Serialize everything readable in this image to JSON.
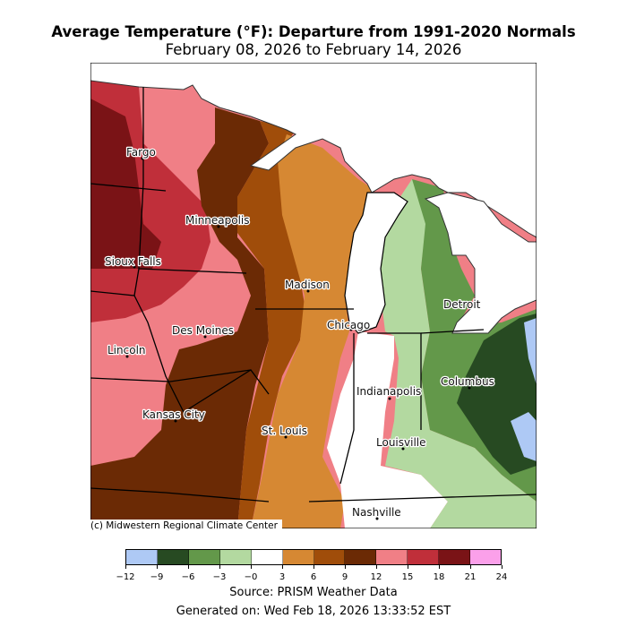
{
  "title": "Average Temperature (°F): Departure from 1991-2020 Normals",
  "subtitle": "February 08, 2026 to February 14, 2026",
  "cities": [
    {
      "name": "Fargo"
    },
    {
      "name": "Minneapolis"
    },
    {
      "name": "Sioux Falls"
    },
    {
      "name": "Madison"
    },
    {
      "name": "Detroit"
    },
    {
      "name": "Chicago"
    },
    {
      "name": "Des Moines"
    },
    {
      "name": "Lincoln"
    },
    {
      "name": "Indianapolis"
    },
    {
      "name": "Columbus"
    },
    {
      "name": "Kansas City"
    },
    {
      "name": "St. Louis"
    },
    {
      "name": "Louisville"
    },
    {
      "name": "Nashville"
    }
  ],
  "credit": "(c) Midwestern Regional Climate Center",
  "legend": {
    "ticks": [
      "−12",
      "−9",
      "−6",
      "−3",
      "−0",
      "3",
      "6",
      "9",
      "12",
      "15",
      "18",
      "21",
      "24"
    ],
    "colors": [
      "#aec9f5",
      "#274a22",
      "#63984a",
      "#b3d9a0",
      "#ffffff",
      "#d68833",
      "#a04d0a",
      "#6b2a05",
      "#f07f86",
      "#c02f3a",
      "#7a1316",
      "#fba0ea"
    ]
  },
  "source": "Source: PRISM Weather Data",
  "generated": "Generated on: Wed Feb 18, 2026 13:33:52 EST"
}
